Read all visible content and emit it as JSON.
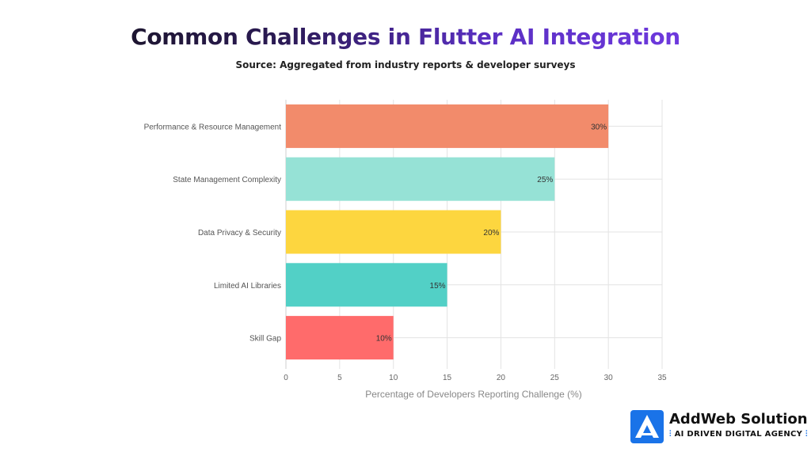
{
  "title": "Common Challenges in Flutter AI Integration",
  "subtitle": "Source: Aggregated from industry reports & developer surveys",
  "brand": {
    "name": "AddWeb Solution",
    "tagline": "AI DRIVEN DIGITAL AGENCY",
    "logo_icon": "addweb-logo-icon",
    "accent": "#1a73e8"
  },
  "chart_data": {
    "type": "bar",
    "orientation": "horizontal",
    "categories": [
      "Performance & Resource Management",
      "State Management Complexity",
      "Data Privacy & Security",
      "Limited AI Libraries",
      "Skill Gap"
    ],
    "values": [
      30,
      25,
      20,
      15,
      10
    ],
    "value_labels": [
      "30%",
      "25%",
      "20%",
      "15%",
      "10%"
    ],
    "colors": [
      "#f28b6b",
      "#96e2d6",
      "#fdd63f",
      "#52d0c6",
      "#ff6b6b"
    ],
    "xlabel": "Percentage of Developers Reporting Challenge (%)",
    "ylabel": "",
    "xlim": [
      0,
      35
    ],
    "xticks": [
      0,
      5,
      10,
      15,
      20,
      25,
      30,
      35
    ],
    "grid": true,
    "legend": "none"
  }
}
